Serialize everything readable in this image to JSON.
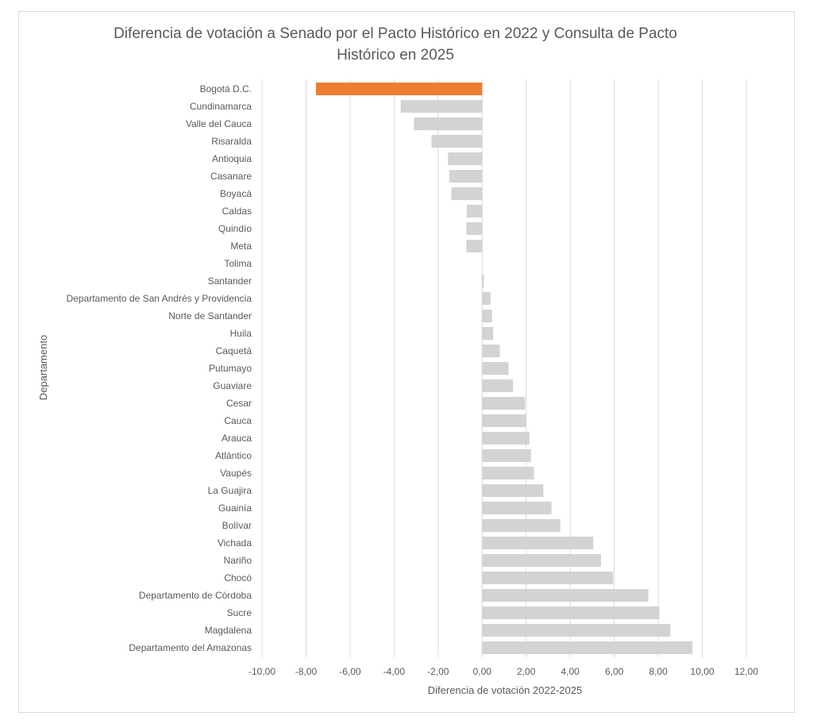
{
  "chart_data": {
    "type": "bar",
    "orientation": "horizontal",
    "title_lines": [
      "Diferencia de votación a Senado por el Pacto Histórico en 2022 y Consulta de Pacto",
      "Histórico en 2025"
    ],
    "xlabel": "Diferencia de votación 2022-2025",
    "ylabel": "Departamento",
    "xlim": [
      -10,
      12
    ],
    "xticks": [
      -10,
      -8,
      -6,
      -4,
      -2,
      0,
      2,
      4,
      6,
      8,
      10,
      12
    ],
    "xtick_labels": [
      "-10,00",
      "-8,00",
      "-6,00",
      "-4,00",
      "-2,00",
      "0,00",
      "2,00",
      "4,00",
      "6,00",
      "8,00",
      "10,00",
      "12,00"
    ],
    "grid": "vertical",
    "highlight_color": "#ED7D31",
    "bar_color": "#D3D3D3",
    "highlight_category": "Bogotá D.C.",
    "categories": [
      "Bogotá D.C.",
      "Cundinamarca",
      "Valle del Cauca",
      "Risaralda",
      "Antioquia",
      "Casanare",
      "Boyacá",
      "Caldas",
      "Quindío",
      "Meta",
      "Tolima",
      "Santander",
      "Departamento de San Andrés y Providencia",
      "Norte de Santander",
      "Huila",
      "Caquetá",
      "Putumayo",
      "Guaviare",
      "Cesar",
      "Cauca",
      "Arauca",
      "Atlántico",
      "Vaupés",
      "La Guajira",
      "Guainía",
      "Bolívar",
      "Vichada",
      "Nariño",
      "Chocó",
      "Departamento de Córdoba",
      "Sucre",
      "Magdalena",
      "Departamento del Amazonas"
    ],
    "values": [
      -7.55,
      -3.7,
      -3.1,
      -2.3,
      -1.55,
      -1.5,
      -1.4,
      -0.7,
      -0.72,
      -0.72,
      0.0,
      0.08,
      0.38,
      0.45,
      0.5,
      0.8,
      1.2,
      1.4,
      1.95,
      2.0,
      2.15,
      2.22,
      2.35,
      2.78,
      3.15,
      3.55,
      5.05,
      5.4,
      5.95,
      7.55,
      8.05,
      8.55,
      9.55
    ]
  }
}
